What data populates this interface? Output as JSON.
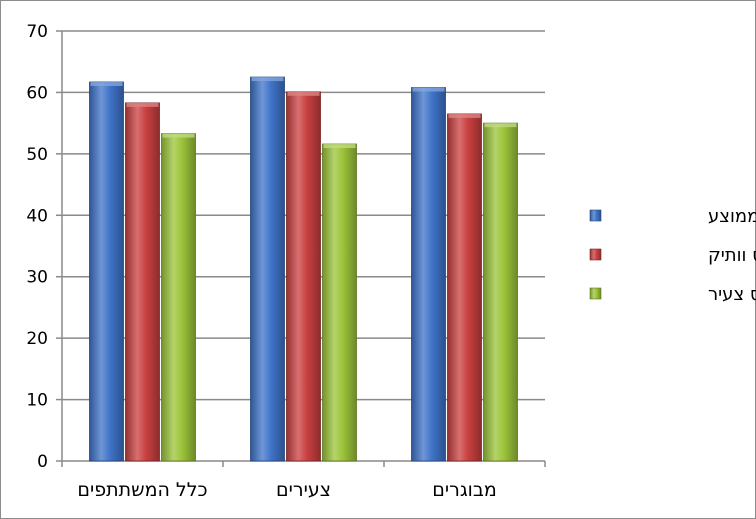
{
  "chart_data": {
    "type": "bar",
    "title": "",
    "xlabel": "",
    "ylabel": "",
    "ylim": [
      0,
      70
    ],
    "yticks": [
      0,
      10,
      20,
      30,
      40,
      50,
      60,
      70
    ],
    "grid": true,
    "legend_position": "right",
    "categories": [
      "כלל המשתתפים",
      "צעירים",
      "מבוגרים"
    ],
    "series": [
      {
        "name": "אזרח ממוצע",
        "color": "#3f74c9",
        "values": [
          61.7,
          62.5,
          60.8
        ]
      },
      {
        "name": "טייס וותיק",
        "color": "#c94040",
        "values": [
          58.3,
          60.1,
          56.5
        ]
      },
      {
        "name": "טייס צעיר",
        "color": "#9cc43a",
        "values": [
          53.3,
          51.6,
          55.0
        ]
      }
    ]
  }
}
